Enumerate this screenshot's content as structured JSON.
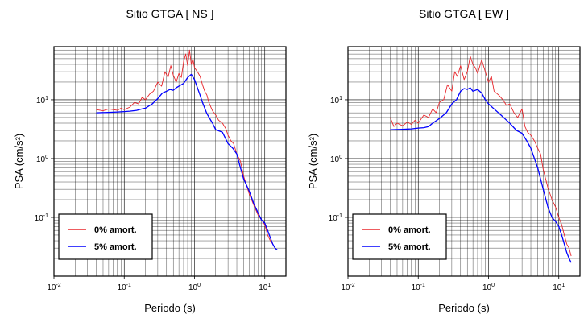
{
  "chart_data": [
    {
      "type": "line",
      "title": "Sitio GTGA [ NS ]",
      "xlabel": "Periodo (s)",
      "ylabel": "PSA (cm/s²)",
      "xscale": "log",
      "yscale": "log",
      "xlim": [
        0.01,
        20
      ],
      "ylim": [
        0.01,
        80
      ],
      "grid": true,
      "legend_position": "bottom-left",
      "xticks": [
        "10-2",
        "10-1",
        "100",
        "101"
      ],
      "yticks": [
        "10-1",
        "100",
        "101"
      ],
      "series": [
        {
          "name": "0% amort.",
          "color": "#e8262b",
          "x": [
            0.04,
            0.05,
            0.06,
            0.07,
            0.08,
            0.09,
            0.1,
            0.12,
            0.14,
            0.16,
            0.18,
            0.2,
            0.23,
            0.26,
            0.3,
            0.34,
            0.38,
            0.42,
            0.46,
            0.5,
            0.55,
            0.6,
            0.65,
            0.7,
            0.75,
            0.8,
            0.85,
            0.9,
            0.95,
            1.0,
            1.1,
            1.2,
            1.3,
            1.4,
            1.5,
            1.6,
            1.8,
            2.0,
            2.2,
            2.5,
            2.8,
            3.0,
            3.3,
            3.6,
            4.0,
            4.5,
            5.0,
            5.5,
            6.0,
            7.0,
            8.0,
            9.0,
            10.0,
            11.0,
            12.0,
            13.0,
            14.0,
            15.0
          ],
          "y": [
            6.8,
            6.5,
            7.0,
            6.8,
            6.6,
            7.2,
            6.8,
            7.5,
            9.0,
            8.5,
            11.0,
            10.0,
            12.5,
            14.0,
            20.0,
            17.0,
            30.0,
            24.0,
            38.0,
            26.0,
            20.0,
            28.0,
            24.0,
            45.0,
            60.0,
            38.0,
            70.0,
            40.0,
            50.0,
            35.0,
            30.0,
            25.0,
            18.0,
            14.0,
            12.0,
            9.0,
            6.5,
            5.5,
            4.5,
            4.0,
            3.2,
            2.5,
            2.0,
            1.8,
            1.2,
            0.9,
            0.5,
            0.35,
            0.25,
            0.16,
            0.11,
            0.09,
            0.075,
            0.05,
            0.04,
            0.035,
            0.03,
            0.028
          ]
        },
        {
          "name": "5% amort.",
          "color": "#0000ff",
          "x": [
            0.04,
            0.06,
            0.08,
            0.1,
            0.12,
            0.15,
            0.18,
            0.2,
            0.25,
            0.3,
            0.35,
            0.4,
            0.45,
            0.5,
            0.55,
            0.6,
            0.7,
            0.8,
            0.9,
            1.0,
            1.1,
            1.2,
            1.3,
            1.5,
            1.8,
            2.0,
            2.5,
            3.0,
            3.5,
            4.0,
            4.5,
            5.0,
            6.0,
            7.0,
            8.0,
            9.0,
            10.0,
            11.0,
            12.0,
            13.0,
            14.0,
            15.0
          ],
          "y": [
            6.0,
            6.1,
            6.2,
            6.3,
            6.4,
            6.6,
            7.0,
            7.2,
            8.5,
            10.5,
            13.0,
            14.0,
            15.0,
            14.5,
            16.0,
            17.0,
            19.0,
            24.0,
            27.0,
            22.0,
            16.0,
            12.0,
            9.0,
            5.8,
            4.0,
            3.1,
            2.8,
            1.8,
            1.5,
            1.2,
            0.7,
            0.45,
            0.28,
            0.17,
            0.12,
            0.09,
            0.08,
            0.06,
            0.045,
            0.035,
            0.03,
            0.028
          ]
        }
      ]
    },
    {
      "type": "line",
      "title": "Sitio GTGA [ EW ]",
      "xlabel": "Periodo (s)",
      "ylabel": "PSA (cm/s²)",
      "xscale": "log",
      "yscale": "log",
      "xlim": [
        0.01,
        20
      ],
      "ylim": [
        0.01,
        80
      ],
      "grid": true,
      "legend_position": "bottom-left",
      "xticks": [
        "10-2",
        "10-1",
        "100",
        "101"
      ],
      "yticks": [
        "10-1",
        "100",
        "101"
      ],
      "series": [
        {
          "name": "0% amort.",
          "color": "#e8262b",
          "x": [
            0.04,
            0.045,
            0.05,
            0.06,
            0.07,
            0.08,
            0.09,
            0.1,
            0.12,
            0.14,
            0.16,
            0.18,
            0.2,
            0.23,
            0.26,
            0.3,
            0.33,
            0.36,
            0.4,
            0.45,
            0.5,
            0.55,
            0.6,
            0.65,
            0.7,
            0.8,
            0.9,
            1.0,
            1.1,
            1.2,
            1.4,
            1.6,
            1.8,
            2.0,
            2.3,
            2.6,
            3.0,
            3.3,
            3.6,
            4.0,
            4.5,
            5.0,
            5.5,
            6.0,
            7.0,
            8.0,
            9.0,
            10.0,
            11.0,
            12.0,
            13.0,
            14.0,
            15.0
          ],
          "y": [
            5.0,
            3.5,
            4.0,
            3.6,
            4.2,
            3.8,
            4.5,
            4.0,
            5.5,
            5.0,
            7.0,
            6.0,
            9.0,
            10.0,
            18.0,
            14.0,
            30.0,
            25.0,
            38.0,
            22.0,
            30.0,
            55.0,
            40.0,
            35.0,
            28.0,
            48.0,
            30.0,
            20.0,
            25.0,
            14.0,
            12.0,
            10.0,
            8.0,
            8.5,
            6.0,
            5.0,
            7.0,
            3.5,
            2.8,
            2.5,
            2.0,
            1.5,
            1.2,
            0.65,
            0.32,
            0.2,
            0.15,
            0.1,
            0.075,
            0.05,
            0.035,
            0.03,
            0.022
          ]
        },
        {
          "name": "5% amort.",
          "color": "#0000ff",
          "x": [
            0.04,
            0.06,
            0.08,
            0.1,
            0.12,
            0.14,
            0.16,
            0.18,
            0.2,
            0.25,
            0.3,
            0.35,
            0.4,
            0.45,
            0.5,
            0.55,
            0.6,
            0.7,
            0.8,
            0.9,
            1.0,
            1.2,
            1.5,
            1.8,
            2.0,
            2.5,
            3.0,
            3.5,
            4.0,
            5.0,
            6.0,
            7.0,
            8.0,
            9.0,
            10.0,
            11.0,
            12.0,
            13.0,
            14.0,
            15.0
          ],
          "y": [
            3.1,
            3.15,
            3.2,
            3.3,
            3.35,
            3.5,
            4.0,
            4.4,
            4.8,
            6.0,
            8.5,
            10.0,
            14.0,
            15.5,
            15.0,
            16.0,
            14.0,
            15.0,
            13.0,
            10.0,
            8.5,
            7.0,
            5.5,
            4.5,
            4.0,
            3.0,
            2.7,
            2.0,
            1.5,
            0.7,
            0.3,
            0.15,
            0.1,
            0.085,
            0.07,
            0.05,
            0.035,
            0.025,
            0.02,
            0.017
          ]
        }
      ]
    }
  ]
}
